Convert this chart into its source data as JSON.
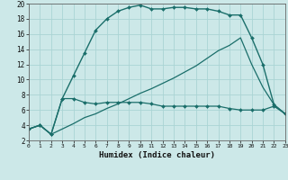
{
  "xlabel": "Humidex (Indice chaleur)",
  "bg_color": "#cce8e8",
  "grid_color": "#aad4d4",
  "line_color": "#1a6e6a",
  "xlim": [
    0,
    23
  ],
  "ylim": [
    2,
    20
  ],
  "xticks": [
    0,
    1,
    2,
    3,
    4,
    5,
    6,
    7,
    8,
    9,
    10,
    11,
    12,
    13,
    14,
    15,
    16,
    17,
    18,
    19,
    20,
    21,
    22,
    23
  ],
  "yticks": [
    2,
    4,
    6,
    8,
    10,
    12,
    14,
    16,
    18,
    20
  ],
  "line3_x": [
    0,
    1,
    2,
    3,
    4,
    5,
    6,
    7,
    8,
    9,
    10,
    11,
    12,
    13,
    14,
    15,
    16,
    17,
    18,
    19,
    20,
    21,
    22,
    23
  ],
  "line3_y": [
    3.5,
    4.0,
    2.8,
    7.5,
    10.5,
    13.5,
    16.5,
    18.0,
    19.0,
    19.5,
    19.8,
    19.3,
    19.3,
    19.5,
    19.5,
    19.3,
    19.3,
    19.0,
    18.5,
    18.5,
    15.5,
    12.0,
    6.7,
    5.5
  ],
  "line2_x": [
    0,
    1,
    2,
    3,
    4,
    5,
    6,
    7,
    8,
    9,
    10,
    11,
    12,
    13,
    14,
    15,
    16,
    17,
    18,
    19,
    20,
    21,
    22,
    23
  ],
  "line2_y": [
    3.5,
    4.0,
    2.8,
    3.5,
    4.2,
    5.0,
    5.5,
    6.2,
    6.8,
    7.5,
    8.2,
    8.8,
    9.5,
    10.2,
    11.0,
    11.8,
    12.8,
    13.8,
    14.5,
    15.5,
    12.0,
    9.0,
    6.7,
    5.5
  ],
  "line1_x": [
    0,
    1,
    2,
    3,
    4,
    5,
    6,
    7,
    8,
    9,
    10,
    11,
    12,
    13,
    14,
    15,
    16,
    17,
    18,
    19,
    20,
    21,
    22,
    23
  ],
  "line1_y": [
    3.5,
    4.0,
    2.8,
    7.5,
    7.5,
    7.0,
    6.8,
    7.0,
    7.0,
    7.0,
    7.0,
    6.8,
    6.5,
    6.5,
    6.5,
    6.5,
    6.5,
    6.5,
    6.2,
    6.0,
    6.0,
    6.0,
    6.5,
    5.5
  ]
}
